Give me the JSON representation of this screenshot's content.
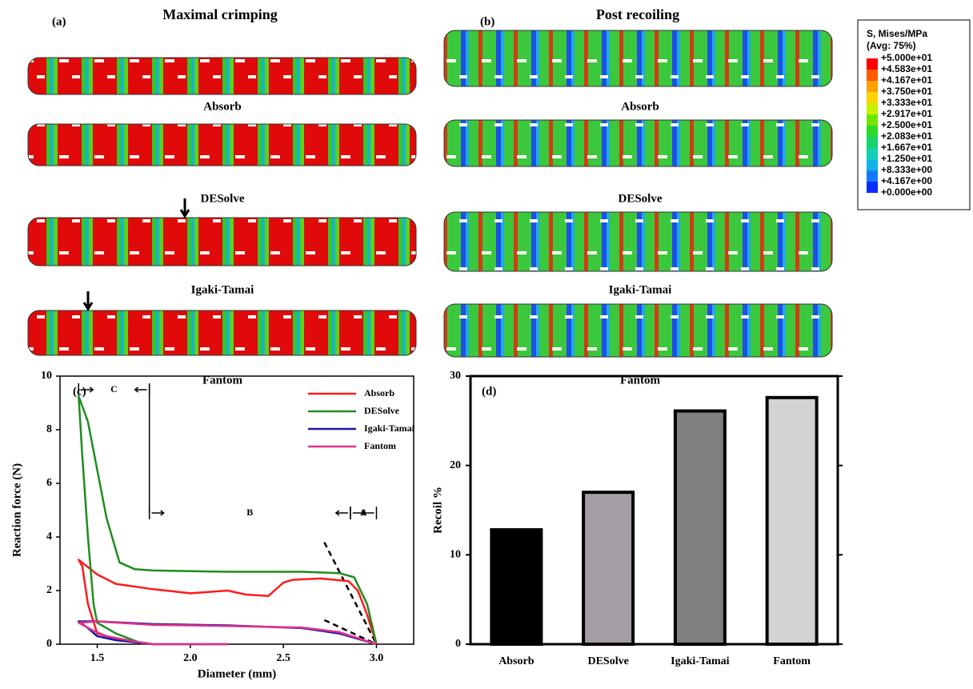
{
  "panels": [
    {
      "label": "(a)",
      "title": "Maximal crimping"
    },
    {
      "label": "(b)",
      "title": "Post recoiling"
    }
  ],
  "stent_labels": [
    "Absorb",
    "DESolve",
    "Igaki-Tamai",
    "Fantom"
  ],
  "colorbar": {
    "title": "S, Mises/MPa",
    "subtitle": "(Avg: 75%)",
    "labels": [
      "+5.000e+01",
      "+4.583e+01",
      "+4.167e+01",
      "+3.750e+01",
      "+3.333e+01",
      "+2.917e+01",
      "+2.500e+01",
      "+2.083e+01",
      "+1.667e+01",
      "+1.250e+01",
      "+8.333e+00",
      "+4.167e+00",
      "+0.000e+00"
    ],
    "colors": [
      "#ff0000",
      "#ff5a00",
      "#ffa000",
      "#ffd400",
      "#c8f000",
      "#6ee600",
      "#2ed82a",
      "#16d26a",
      "#12d3b0",
      "#10b4e8",
      "#1478ff",
      "#0a2cff"
    ]
  },
  "chart_data": [
    {
      "type": "line",
      "label": "(c)",
      "x_label": "Diameter (mm)",
      "y_label": "Reaction force (N)",
      "xlim": [
        1.3,
        3.2
      ],
      "ylim": [
        0,
        10
      ],
      "xticks": [
        {
          "value": 1.5,
          "label": "1.5"
        },
        {
          "value": 2.0,
          "label": "2.0"
        },
        {
          "value": 2.5,
          "label": "2.5"
        },
        {
          "value": 3.0,
          "label": "3.0"
        }
      ],
      "yticks": [
        0,
        2,
        4,
        6,
        8,
        10
      ],
      "series": [
        {
          "name": "Absorb",
          "color": "#ff1a1a",
          "x": [
            3.0,
            2.95,
            2.9,
            2.85,
            2.7,
            2.55,
            2.5,
            2.42,
            2.3,
            2.2,
            2.0,
            1.8,
            1.6,
            1.5,
            1.4,
            1.42,
            1.45,
            1.5,
            1.6,
            1.8
          ],
          "values": [
            0,
            1.1,
            2.0,
            2.35,
            2.45,
            2.4,
            2.3,
            1.8,
            1.85,
            2.0,
            1.9,
            2.05,
            2.25,
            2.6,
            3.15,
            2.9,
            1.5,
            0.4,
            0.2,
            0
          ]
        },
        {
          "name": "DESolve",
          "color": "#1f8c1f",
          "x": [
            3.0,
            2.95,
            2.88,
            2.8,
            2.6,
            2.2,
            1.8,
            1.7,
            1.62,
            1.55,
            1.5,
            1.45,
            1.4,
            1.42,
            1.45,
            1.48,
            1.5,
            1.6,
            1.75
          ],
          "values": [
            0,
            1.5,
            2.5,
            2.65,
            2.7,
            2.7,
            2.75,
            2.8,
            3.05,
            4.7,
            6.5,
            8.3,
            9.25,
            7.0,
            4.0,
            1.5,
            0.8,
            0.4,
            0
          ]
        },
        {
          "name": "Igaki-Tamai",
          "color": "#1a1aa8",
          "x": [
            3.0,
            2.8,
            2.6,
            2.2,
            1.8,
            1.5,
            1.4,
            1.45,
            1.5,
            1.6,
            1.8,
            2.2
          ],
          "values": [
            0,
            0.4,
            0.6,
            0.7,
            0.75,
            0.85,
            0.85,
            0.6,
            0.3,
            0.15,
            0,
            0
          ]
        },
        {
          "name": "Fantom",
          "color": "#e0308a",
          "x": [
            3.0,
            2.8,
            2.6,
            2.2,
            1.8,
            1.5,
            1.4,
            1.48,
            1.55,
            1.7,
            1.8,
            2.2
          ],
          "values": [
            0,
            0.45,
            0.62,
            0.68,
            0.72,
            0.85,
            0.8,
            0.5,
            0.3,
            0.1,
            0,
            0
          ]
        }
      ],
      "reference_lines": [
        {
          "x": [
            2.72,
            3.0
          ],
          "y": [
            3.8,
            0
          ]
        },
        {
          "x": [
            2.72,
            3.0
          ],
          "y": [
            0.9,
            0
          ]
        }
      ],
      "regions": [
        {
          "label": "C",
          "from": 1.4,
          "to": 1.78
        },
        {
          "label": "B",
          "from": 1.78,
          "to": 2.86
        },
        {
          "label": "A",
          "from": 2.86,
          "to": 3.0
        }
      ]
    },
    {
      "type": "bar",
      "label": "(d)",
      "y_label": "Recoil %",
      "categories": [
        "Absorb",
        "DESolve",
        "Igaki-Tamai",
        "Fantom"
      ],
      "values": [
        12.8,
        17.0,
        26.1,
        27.6
      ],
      "colors": [
        "#000000",
        "#a49ea4",
        "#7f7f7f",
        "#d3d3d3"
      ],
      "ylim": [
        0,
        30
      ],
      "yticks": [
        0,
        10,
        20,
        30
      ]
    }
  ]
}
